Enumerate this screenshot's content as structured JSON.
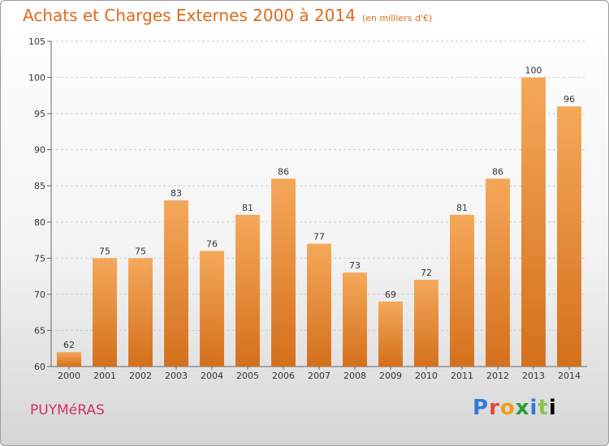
{
  "chart_data": {
    "type": "bar",
    "title": "Achats et Charges Externes 2000 à 2014",
    "subtitle": "(en milliers d'€)",
    "categories": [
      "2000",
      "2001",
      "2002",
      "2003",
      "2004",
      "2005",
      "2006",
      "2007",
      "2008",
      "2009",
      "2010",
      "2011",
      "2012",
      "2013",
      "2014"
    ],
    "values": [
      62,
      75,
      75,
      83,
      76,
      81,
      86,
      77,
      73,
      69,
      72,
      81,
      86,
      100,
      96
    ],
    "ylim": [
      60,
      105
    ],
    "yticks": [
      60,
      65,
      70,
      75,
      80,
      85,
      90,
      95,
      100,
      105
    ],
    "grid": true,
    "colors": {
      "bar_top": "#f5a85a",
      "bar_bottom": "#d4701c",
      "grid": "#cccccc",
      "title": "#e06a1a",
      "commune": "#cc3366"
    }
  },
  "footer": {
    "commune": "PUYMéRAS",
    "logo_letters": [
      "P",
      "r",
      "o",
      "x",
      "i",
      "t",
      "i"
    ]
  }
}
